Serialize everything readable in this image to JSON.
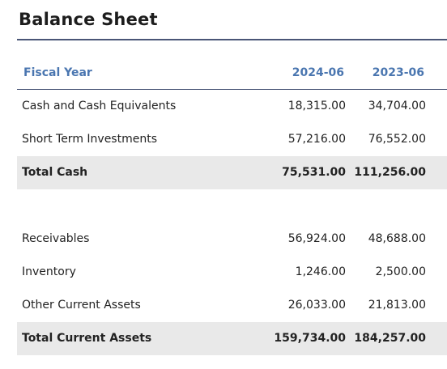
{
  "title": "Balance Sheet",
  "header": {
    "label": "Fiscal Year",
    "col1": "2024-06",
    "col2": "2023-06"
  },
  "rows": [
    {
      "label": "Cash and Cash Equivalents",
      "v1": "18,315.00",
      "v2": "34,704.00"
    },
    {
      "label": "Short Term Investments",
      "v1": "57,216.00",
      "v2": "76,552.00"
    },
    {
      "label": "Total Cash",
      "v1": "75,531.00",
      "v2": "111,256.00"
    },
    {
      "label": "Receivables",
      "v1": "56,924.00",
      "v2": "48,688.00"
    },
    {
      "label": "Inventory",
      "v1": "1,246.00",
      "v2": "2,500.00"
    },
    {
      "label": "Other Current Assets",
      "v1": "26,033.00",
      "v2": "21,813.00"
    },
    {
      "label": "Total Current Assets",
      "v1": "159,734.00",
      "v2": "184,257.00"
    }
  ],
  "colors": {
    "header_text": "#4a76b0",
    "rule": "#4a5677",
    "total_bg": "#e9e9e9"
  }
}
